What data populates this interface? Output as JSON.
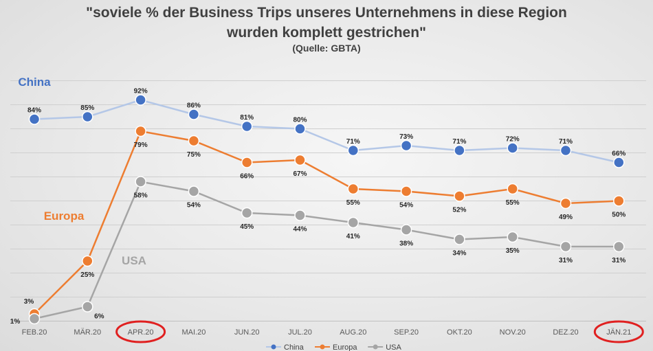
{
  "chart_data": {
    "type": "line",
    "title_line1": "\"soviele % der Business Trips unseres Unternehmens in diese Region",
    "title_line2": "wurden komplett gestrichen\"",
    "source": "(Quelle: GBTA)",
    "categories": [
      "FEB.20",
      "MÄR.20",
      "APR.20",
      "MAI.20",
      "JUN.20",
      "JUL.20",
      "AUG.20",
      "SEP.20",
      "OKT.20",
      "NOV.20",
      "DEZ.20",
      "JÄN.21"
    ],
    "series": [
      {
        "name": "China",
        "color": "#4472C4",
        "line_color": "#B4C7E7",
        "values": [
          84,
          85,
          92,
          86,
          81,
          80,
          71,
          73,
          71,
          72,
          71,
          66
        ]
      },
      {
        "name": "Europa",
        "color": "#ED7D31",
        "line_color": "#ED7D31",
        "values": [
          3,
          25,
          79,
          75,
          66,
          67,
          55,
          54,
          52,
          55,
          49,
          50
        ]
      },
      {
        "name": "USA",
        "color": "#A5A5A5",
        "line_color": "#A5A5A5",
        "values": [
          1,
          6,
          58,
          54,
          45,
          44,
          41,
          38,
          34,
          35,
          31,
          31
        ]
      }
    ],
    "series_labels": [
      "China",
      "Europa",
      "USA"
    ],
    "highlighted_categories": [
      "APR.20",
      "JÄN.21"
    ],
    "highlight_color": "#E02020",
    "ylim": [
      0,
      100
    ],
    "grid": true,
    "legend": "bottom"
  }
}
